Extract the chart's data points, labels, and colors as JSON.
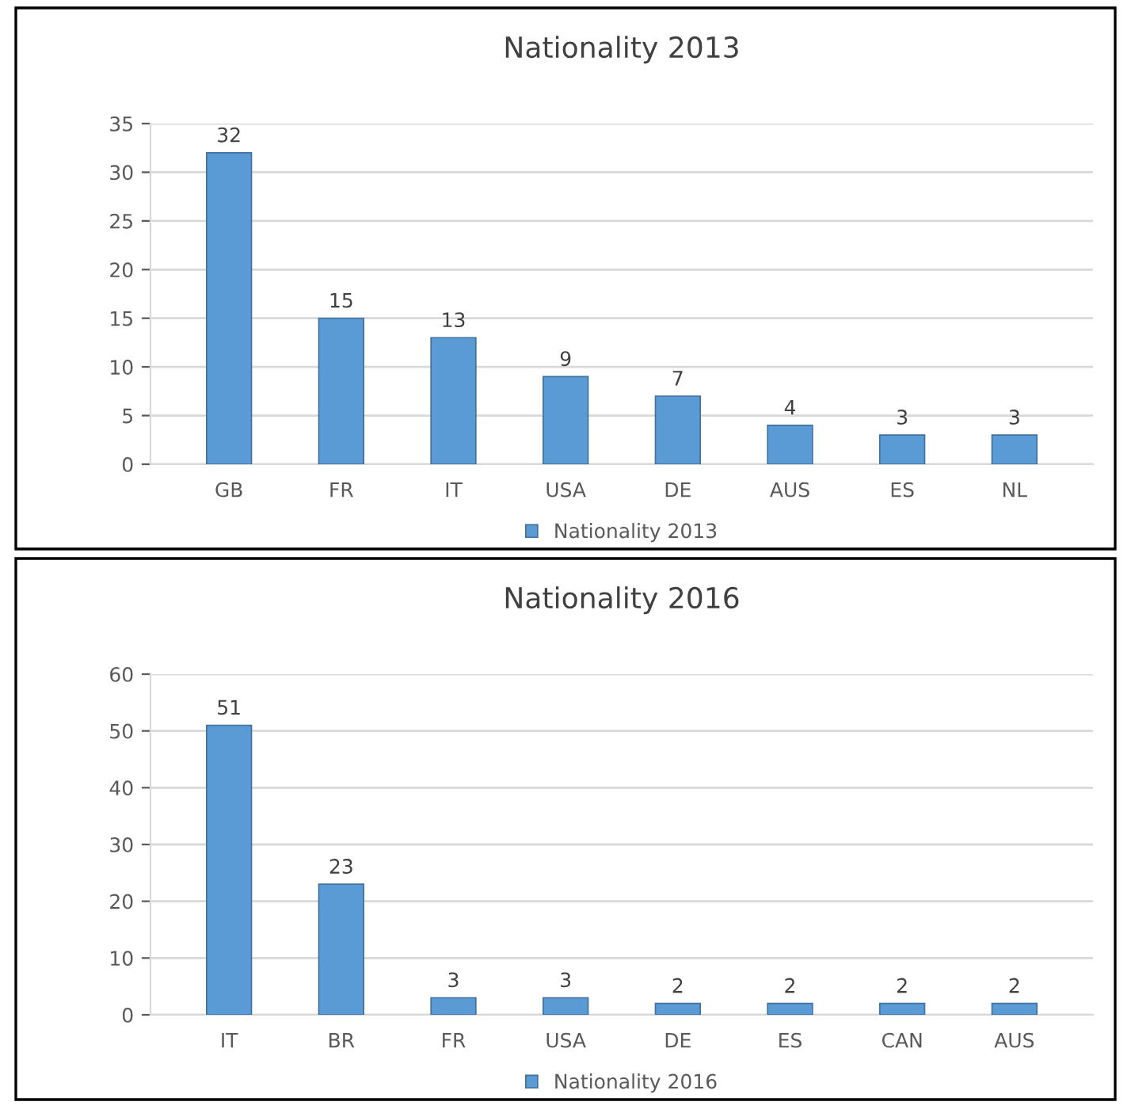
{
  "chart_data": [
    {
      "type": "bar",
      "title": "Nationality 2013",
      "categories": [
        "GB",
        "FR",
        "IT",
        "USA",
        "DE",
        "AUS",
        "ES",
        "NL"
      ],
      "series": [
        {
          "name": "Nationality 2013",
          "color": "#5b9bd5",
          "values": [
            32,
            15,
            13,
            9,
            7,
            4,
            3,
            3
          ]
        }
      ],
      "ylim": [
        0,
        35
      ],
      "yticks": [
        0,
        5,
        10,
        15,
        20,
        25,
        30,
        35
      ],
      "grid": "y",
      "legend": "bottom",
      "data_labels": true
    },
    {
      "type": "bar",
      "title": "Nationality 2016",
      "categories": [
        "IT",
        "BR",
        "FR",
        "USA",
        "DE",
        "ES",
        "CAN",
        "AUS"
      ],
      "series": [
        {
          "name": "Nationality 2016",
          "color": "#5b9bd5",
          "values": [
            51,
            23,
            3,
            3,
            2,
            2,
            2,
            2
          ]
        }
      ],
      "ylim": [
        0,
        60
      ],
      "yticks": [
        0,
        10,
        20,
        30,
        40,
        50,
        60
      ],
      "grid": "y",
      "legend": "bottom",
      "data_labels": true
    }
  ]
}
